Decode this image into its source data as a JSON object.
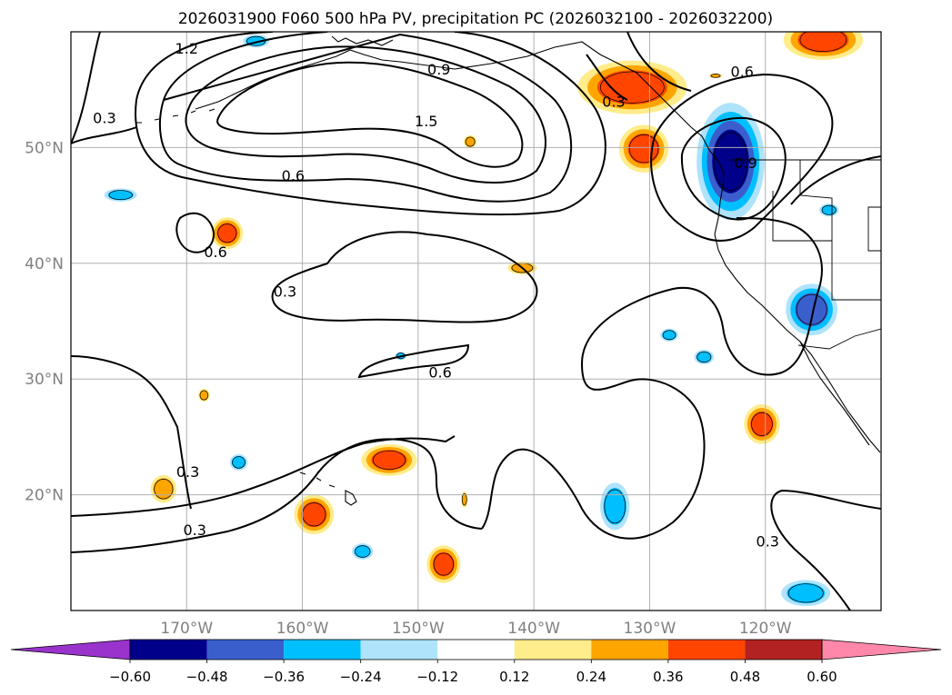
{
  "chart_data": {
    "type": "map",
    "title": "2026031900 F060 500 hPa PV, precipitation PC (2026032100 - 2026032200)",
    "projection": "PlateCarree",
    "lon_range": [
      -180,
      -110
    ],
    "lat_range": [
      10,
      60
    ],
    "lon_ticks": [
      {
        "value": -170,
        "label": "170°W"
      },
      {
        "value": -160,
        "label": "160°W"
      },
      {
        "value": -150,
        "label": "150°W"
      },
      {
        "value": -140,
        "label": "140°W"
      },
      {
        "value": -130,
        "label": "130°W"
      },
      {
        "value": -120,
        "label": "120°W"
      }
    ],
    "lat_ticks": [
      {
        "value": 20,
        "label": "20°N"
      },
      {
        "value": 30,
        "label": "30°N"
      },
      {
        "value": 40,
        "label": "40°N"
      },
      {
        "value": 50,
        "label": "50°N"
      }
    ],
    "grid": true,
    "contour_field": "500 hPa PV",
    "contour_labels": [
      {
        "text": "1.2",
        "lon": -170.0,
        "lat": 58.6
      },
      {
        "text": "0.9",
        "lon": -148.2,
        "lat": 56.8
      },
      {
        "text": "1.5",
        "lon": -149.3,
        "lat": 52.3
      },
      {
        "text": "0.6",
        "lon": -160.8,
        "lat": 47.6
      },
      {
        "text": "0.3",
        "lon": -177.1,
        "lat": 52.6
      },
      {
        "text": "0.6",
        "lon": -167.5,
        "lat": 41.0
      },
      {
        "text": "0.3",
        "lon": -161.5,
        "lat": 37.6
      },
      {
        "text": "0.6",
        "lon": -148.1,
        "lat": 30.6
      },
      {
        "text": "0.3",
        "lon": -169.9,
        "lat": 22.0
      },
      {
        "text": "0.3",
        "lon": -169.3,
        "lat": 17.0
      },
      {
        "text": "0.3",
        "lon": -133.1,
        "lat": 54.0
      },
      {
        "text": "0.6",
        "lon": -122.0,
        "lat": 56.6
      },
      {
        "text": "0.9",
        "lon": -121.7,
        "lat": 48.7
      },
      {
        "text": "0.3",
        "lon": -119.8,
        "lat": 16.0
      }
    ],
    "colorbar": {
      "levels": [
        -0.6,
        -0.48,
        -0.36,
        -0.24,
        -0.12,
        0.12,
        0.24,
        0.36,
        0.48,
        0.6
      ],
      "tick_labels": [
        "−0.60",
        "−0.48",
        "−0.36",
        "−0.24",
        "−0.12",
        "0.12",
        "0.24",
        "0.36",
        "0.48",
        "0.60"
      ],
      "colors": [
        "#9933cc",
        "#00008b",
        "#3a5fcd",
        "#00bfff",
        "#aee3fb",
        "#ffffff",
        "#ffec8b",
        "#ffa500",
        "#ff4500",
        "#b22222",
        "#ff88aa"
      ],
      "extend": "both",
      "orientation": "horizontal"
    },
    "shaded_features": [
      {
        "lon": -164.0,
        "lat": 59.2,
        "level": -0.24,
        "rx": 1.6,
        "ry": 0.8
      },
      {
        "lon": -166.5,
        "lat": 42.6,
        "level": 0.36,
        "rx": 1.6,
        "ry": 1.6
      },
      {
        "lon": -175.7,
        "lat": 45.9,
        "level": -0.24,
        "rx": 2.0,
        "ry": 0.8
      },
      {
        "lon": -145.5,
        "lat": 50.5,
        "level": 0.24,
        "rx": 0.8,
        "ry": 0.8
      },
      {
        "lon": -141.0,
        "lat": 39.6,
        "level": 0.24,
        "rx": 1.8,
        "ry": 0.8
      },
      {
        "lon": -131.5,
        "lat": 55.2,
        "level": 0.36,
        "rx": 5.5,
        "ry": 2.7
      },
      {
        "lon": -130.5,
        "lat": 49.9,
        "level": 0.36,
        "rx": 2.5,
        "ry": 2.4
      },
      {
        "lon": -115.0,
        "lat": 59.3,
        "level": 0.36,
        "rx": 4.0,
        "ry": 2.0
      },
      {
        "lon": -124.3,
        "lat": 56.2,
        "level": 0.24,
        "rx": 0.8,
        "ry": 0.3
      },
      {
        "lon": -123.0,
        "lat": 48.8,
        "level": -0.48,
        "rx": 2.9,
        "ry": 5.0
      },
      {
        "lon": -114.5,
        "lat": 44.6,
        "level": -0.24,
        "rx": 1.2,
        "ry": 0.8
      },
      {
        "lon": -116.0,
        "lat": 36.0,
        "level": -0.36,
        "rx": 2.6,
        "ry": 2.6
      },
      {
        "lon": -128.3,
        "lat": 33.8,
        "level": -0.24,
        "rx": 1.1,
        "ry": 0.8
      },
      {
        "lon": -125.3,
        "lat": 31.9,
        "level": -0.24,
        "rx": 1.2,
        "ry": 0.9
      },
      {
        "lon": -120.3,
        "lat": 26.1,
        "level": 0.36,
        "rx": 1.8,
        "ry": 2.0
      },
      {
        "lon": -133.0,
        "lat": 19.0,
        "level": -0.24,
        "rx": 1.8,
        "ry": 2.9
      },
      {
        "lon": -116.5,
        "lat": 11.5,
        "level": -0.24,
        "rx": 3.0,
        "ry": 1.6
      },
      {
        "lon": -152.5,
        "lat": 23.0,
        "level": 0.36,
        "rx": 2.8,
        "ry": 1.6
      },
      {
        "lon": -159.0,
        "lat": 18.3,
        "level": 0.36,
        "rx": 2.0,
        "ry": 2.0
      },
      {
        "lon": -147.8,
        "lat": 14.0,
        "level": 0.36,
        "rx": 1.7,
        "ry": 1.9
      },
      {
        "lon": -154.8,
        "lat": 15.1,
        "level": -0.24,
        "rx": 1.3,
        "ry": 1.0
      },
      {
        "lon": -165.5,
        "lat": 22.8,
        "level": -0.24,
        "rx": 1.1,
        "ry": 1.0
      },
      {
        "lon": -172.0,
        "lat": 20.5,
        "level": 0.24,
        "rx": 1.6,
        "ry": 1.7
      },
      {
        "lon": -168.5,
        "lat": 28.6,
        "level": 0.24,
        "rx": 0.7,
        "ry": 0.8
      },
      {
        "lon": -146.0,
        "lat": 19.6,
        "level": 0.24,
        "rx": 0.4,
        "ry": 1.0
      },
      {
        "lon": -151.5,
        "lat": 32.0,
        "level": -0.24,
        "rx": 0.7,
        "ry": 0.5
      }
    ]
  }
}
